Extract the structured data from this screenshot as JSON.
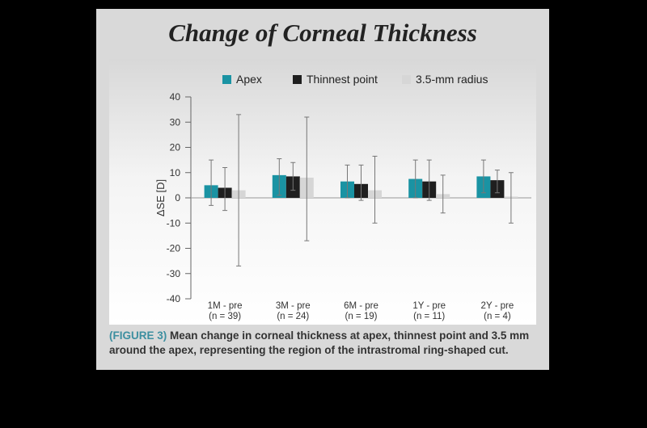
{
  "figure_title": "Change of Corneal Thickness",
  "caption": {
    "label": "(FIGURE 3)",
    "text": "Mean change in corneal thickness at apex, thinnest point and 3.5 mm around the apex, representing the region of the intrastromal ring-shaped cut."
  },
  "colors": {
    "apex": "#1a93a3",
    "thinnest": "#1f1f1f",
    "radius": "#d6d6d6",
    "error_bar": "#777777"
  },
  "chart_data": {
    "type": "bar",
    "title": "Change of Corneal Thickness",
    "ylabel": "ΔSE [D]",
    "xlabel": "",
    "ylim": [
      -40,
      40
    ],
    "yticks": [
      40,
      30,
      20,
      10,
      0,
      -10,
      -20,
      -30,
      -40
    ],
    "grid": false,
    "legend_position": "top",
    "categories": [
      "1M - pre",
      "3M - pre",
      "6M - pre",
      "1Y - pre",
      "2Y - pre"
    ],
    "category_sub": [
      "(n = 39)",
      "(n = 24)",
      "(n = 19)",
      "(n = 11)",
      "(n = 4)"
    ],
    "series": [
      {
        "name": "Apex",
        "values": [
          5,
          9,
          6.5,
          7.5,
          8.5
        ],
        "err_low": [
          -3,
          1,
          0,
          0,
          2
        ],
        "err_high": [
          15,
          15.5,
          13,
          15,
          15
        ]
      },
      {
        "name": "Thinnest point",
        "values": [
          4,
          8.5,
          5.5,
          6.5,
          7
        ],
        "err_low": [
          -5,
          3,
          -1,
          -1,
          2
        ],
        "err_high": [
          12,
          14,
          13,
          15,
          11
        ]
      },
      {
        "name": "3.5-mm radius",
        "values": [
          3,
          8,
          3,
          1.5,
          0.5
        ],
        "err_low": [
          -27,
          -17,
          -10,
          -6,
          -10
        ],
        "err_high": [
          33,
          32,
          16.5,
          9,
          10
        ]
      }
    ]
  }
}
